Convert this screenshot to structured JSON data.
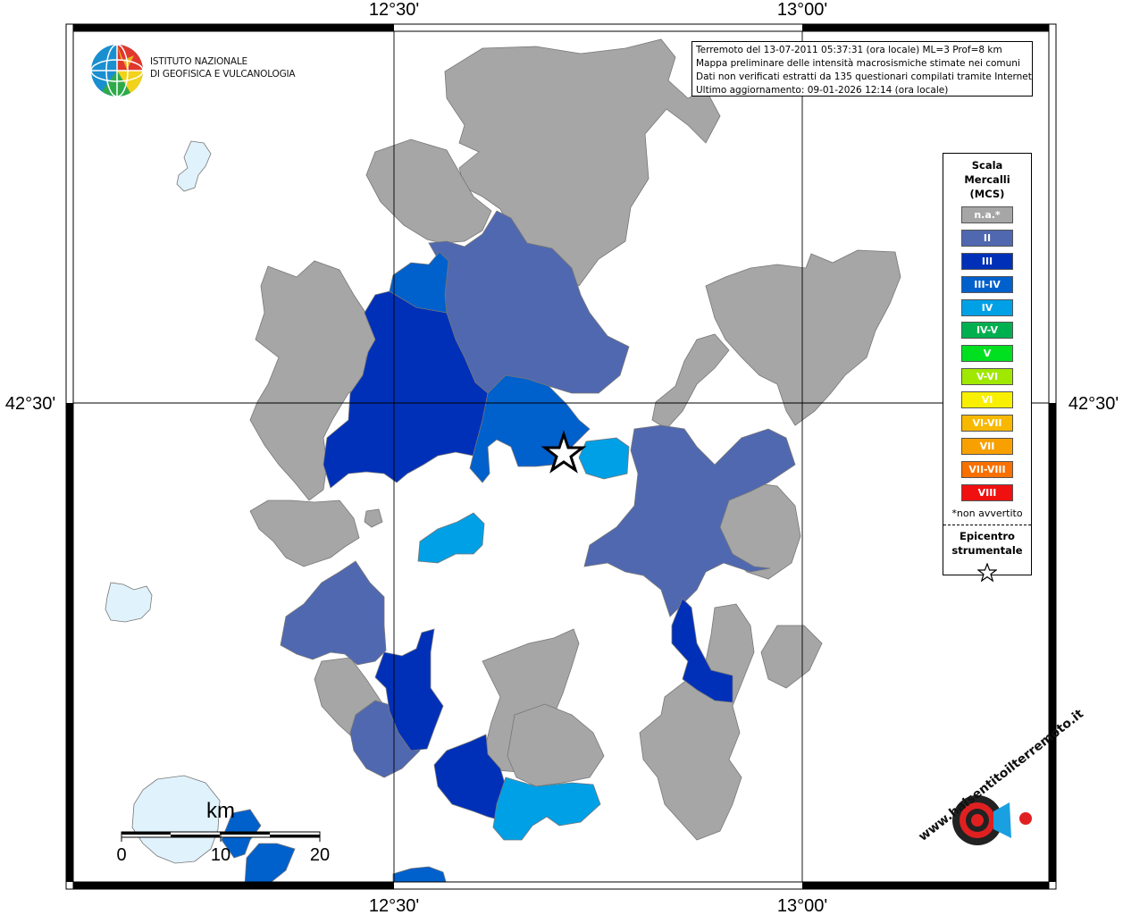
{
  "map": {
    "graticule": {
      "lon_labels": [
        "12°30'",
        "13°00'"
      ],
      "lat_labels": [
        "42°30'"
      ]
    },
    "epicenter": {
      "icon": "star-icon"
    },
    "colors": {
      "n.a.": "#a6a6a6",
      "II": "#5068b0",
      "III": "#0030b8",
      "III-IV": "#0060cc",
      "IV": "#00a0e6",
      "light": "#e0f2fc"
    }
  },
  "info": {
    "line1": "Terremoto del 13-07-2011 05:37:31 (ora locale) ML=3 Prof=8 km",
    "line2": "Mappa preliminare delle intensità macrosismiche stimate nei comuni",
    "line3": "Dati non verificati estratti da 135 questionari compilati tramite Internet.",
    "line4": "Ultimo aggiornamento: 09-01-2026 12:14 (ora locale)"
  },
  "logo": {
    "line1": "ISTITUTO NAZIONALE",
    "line2": "DI GEOFISICA E VULCANOLOGIA"
  },
  "legend": {
    "title1": "Scala",
    "title2": "Mercalli",
    "title3": "(MCS)",
    "items": [
      {
        "label": "n.a.*",
        "color": "#a6a6a6"
      },
      {
        "label": "II",
        "color": "#5068b0"
      },
      {
        "label": "III",
        "color": "#0030b8"
      },
      {
        "label": "III-IV",
        "color": "#0060cc"
      },
      {
        "label": "IV",
        "color": "#00a0e6"
      },
      {
        "label": "IV-V",
        "color": "#00b050"
      },
      {
        "label": "V",
        "color": "#00e020"
      },
      {
        "label": "V-VI",
        "color": "#a0e800"
      },
      {
        "label": "VI",
        "color": "#f8f000"
      },
      {
        "label": "VI-VII",
        "color": "#f8b800"
      },
      {
        "label": "VII",
        "color": "#f8a000"
      },
      {
        "label": "VII-VIII",
        "color": "#f87000"
      },
      {
        "label": "VIII",
        "color": "#f01010"
      }
    ],
    "note": "*non avvertito",
    "epicenter1": "Epicentro",
    "epicenter2": "strumentale"
  },
  "scalebar": {
    "unit": "km",
    "ticks": [
      "0",
      "10",
      "20"
    ]
  },
  "brand": {
    "text": "www.haisentitoilterremoto.it"
  }
}
